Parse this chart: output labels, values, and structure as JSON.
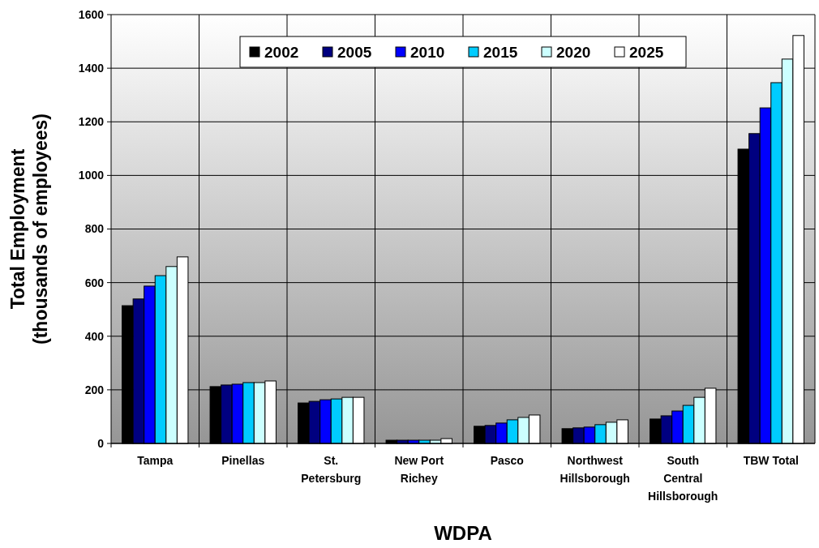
{
  "chart_data": {
    "type": "bar",
    "xlabel": "WDPA",
    "ylabel": "Total Employment\n(thousands of employees)",
    "categories": [
      "Tampa",
      "Pinellas",
      "St. Petersburg",
      "New Port Richey",
      "Pasco",
      "Northwest Hillsborough",
      "South Central Hillsborough",
      "TBW Total"
    ],
    "series": [
      {
        "name": "2002",
        "color": "#000000",
        "values": [
          514,
          212,
          151,
          12,
          64,
          55,
          91,
          1098
        ]
      },
      {
        "name": "2005",
        "color": "#000080",
        "values": [
          539,
          218,
          157,
          12,
          67,
          58,
          103,
          1156
        ]
      },
      {
        "name": "2010",
        "color": "#0000ff",
        "values": [
          587,
          221,
          163,
          12,
          76,
          61,
          121,
          1252
        ]
      },
      {
        "name": "2015",
        "color": "#00ccff",
        "values": [
          626,
          227,
          166,
          12,
          88,
          70,
          142,
          1346
        ]
      },
      {
        "name": "2020",
        "color": "#ccffff",
        "values": [
          660,
          227,
          172,
          12,
          97,
          79,
          172,
          1434
        ]
      },
      {
        "name": "2025",
        "color": "#ffffff",
        "values": [
          696,
          233,
          172,
          18,
          106,
          88,
          206,
          1522
        ]
      }
    ],
    "ylim": [
      0,
      1600
    ],
    "yticks": [
      0,
      200,
      400,
      600,
      800,
      1000,
      1200,
      1400,
      1600
    ],
    "grid": true,
    "legend": "top"
  }
}
